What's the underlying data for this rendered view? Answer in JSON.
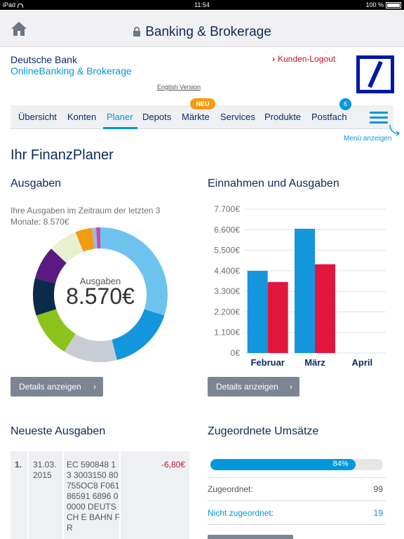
{
  "status_bar": {
    "device": "iPad",
    "time": "11:54",
    "battery": "100 %"
  },
  "header": {
    "title": "Banking & Brokerage"
  },
  "brand": {
    "line1": "Deutsche Bank",
    "line2": "OnlineBanking & Brokerage",
    "logout": "Kunden-Logout",
    "english": "English Version"
  },
  "nav": {
    "items": [
      "Übersicht",
      "Konten",
      "Planer",
      "Depots",
      "Märkte",
      "Services",
      "Produkte",
      "Postfach"
    ],
    "active": "Planer",
    "new_badge": "NEU",
    "mail_count": "6",
    "menu_label": "Menü anzeigen"
  },
  "page_title": "Ihr FinanzPlaner",
  "expenses": {
    "title": "Ausgaben",
    "text": "Ihre Ausgaben im Zeitraum der letzten 3 Monate: 8.570€",
    "donut_label": "Ausgaben",
    "donut_value": "8.570€",
    "details": "Details anzeigen",
    "segments": [
      {
        "color": "#6ec3ee",
        "share": 0.3
      },
      {
        "color": "#1496dc",
        "share": 0.16
      },
      {
        "color": "#c8cdd4",
        "share": 0.13
      },
      {
        "color": "#8bc31a",
        "share": 0.11
      },
      {
        "color": "#0b2b4d",
        "share": 0.09
      },
      {
        "color": "#5b1a82",
        "share": 0.08
      },
      {
        "color": "#e8f0d2",
        "share": 0.07
      },
      {
        "color": "#f39c12",
        "share": 0.04
      },
      {
        "color": "#9fb7e0",
        "share": 0.01
      },
      {
        "color": "#c34aa8",
        "share": 0.01
      }
    ]
  },
  "income": {
    "title": "Einnahmen und Ausgaben",
    "details": "Details anzeigen"
  },
  "chart_data": {
    "type": "bar",
    "categories": [
      "Februar",
      "März",
      "April"
    ],
    "series": [
      {
        "color": "#1496dc",
        "values": [
          4400,
          6650,
          null
        ]
      },
      {
        "color": "#e0163f",
        "values": [
          3800,
          4750,
          null
        ]
      }
    ],
    "yticks": [
      "0€",
      "1.100€",
      "2.200€",
      "3.300€",
      "4.400€",
      "5.500€",
      "6.600€",
      "7.700€"
    ],
    "ylim": [
      0,
      7700
    ],
    "grid": true
  },
  "latest": {
    "title": "Neueste Ausgaben",
    "rows": [
      {
        "num": "1.",
        "date": "31.03. 2015",
        "desc": "EC 590848 13 3003150 80755OC8 F06186591 6896 00000 DEUTSCH E BAHN FR",
        "amount": "-6,80€"
      }
    ]
  },
  "assigned": {
    "title": "Zugeordnete Umsätze",
    "progress_fraction": 0.84,
    "progress_label": "84%",
    "rows": [
      {
        "label": "Zugeordnet:",
        "value": "99"
      },
      {
        "label": "Nicht zugeordnet:",
        "value": "19"
      }
    ]
  }
}
